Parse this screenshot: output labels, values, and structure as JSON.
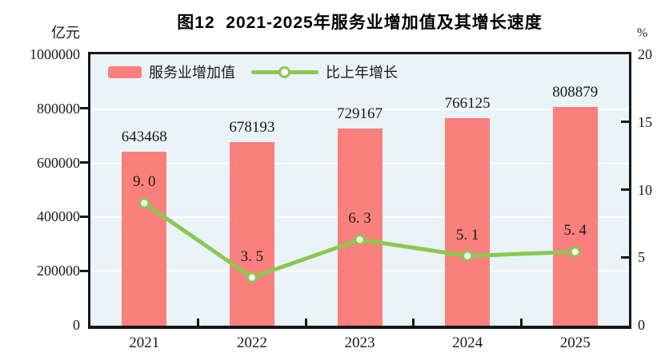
{
  "figure": {
    "title": "图12  2021-2025年服务业增加值及其增长速度"
  },
  "left_axis": {
    "unit": "亿元",
    "tick_labels": [
      "1000000",
      "800000",
      "600000",
      "400000",
      "200000",
      "0"
    ]
  },
  "right_axis": {
    "unit": "%",
    "tick_labels": [
      "20",
      "15",
      "10",
      "5",
      "0"
    ]
  },
  "legend": {
    "bar_label": "服务业增加值",
    "line_label": "比上年增长"
  },
  "colors": {
    "bar": "#f9807d",
    "line": "#8cc751",
    "marker_fill": "#ffffff",
    "plot_background": "#eaf3f8",
    "grid": "#ffffff",
    "axis": "#161616",
    "text": "#1a1a1a"
  },
  "chart_data": {
    "type": "bar+line",
    "title": "图12  2021-2025年服务业增加值及其增长速度",
    "categories": [
      "2021",
      "2022",
      "2023",
      "2024",
      "2025"
    ],
    "series": [
      {
        "name": "服务业增加值",
        "type": "bar",
        "axis": "left",
        "unit": "亿元",
        "color": "#f9807d",
        "values": [
          643468,
          678193,
          729167,
          766125,
          808879
        ],
        "data_labels": [
          "643468",
          "678193",
          "729167",
          "766125",
          "808879"
        ]
      },
      {
        "name": "比上年增长",
        "type": "line",
        "axis": "right",
        "unit": "%",
        "color": "#8cc751",
        "values": [
          9.0,
          3.5,
          6.3,
          5.1,
          5.4
        ],
        "data_labels": [
          "9. 0",
          "3. 5",
          "6. 3",
          "5. 1",
          "5. 4"
        ]
      }
    ],
    "left_ylim": [
      0,
      1000000
    ],
    "right_ylim": [
      0,
      20
    ],
    "left_tick_values": [
      0,
      200000,
      400000,
      600000,
      800000,
      1000000
    ],
    "right_tick_values": [
      0,
      5,
      10,
      15,
      20
    ],
    "grid": true,
    "grid_lines_at_left_ticks": true,
    "legend_position": "inside-top-left"
  }
}
